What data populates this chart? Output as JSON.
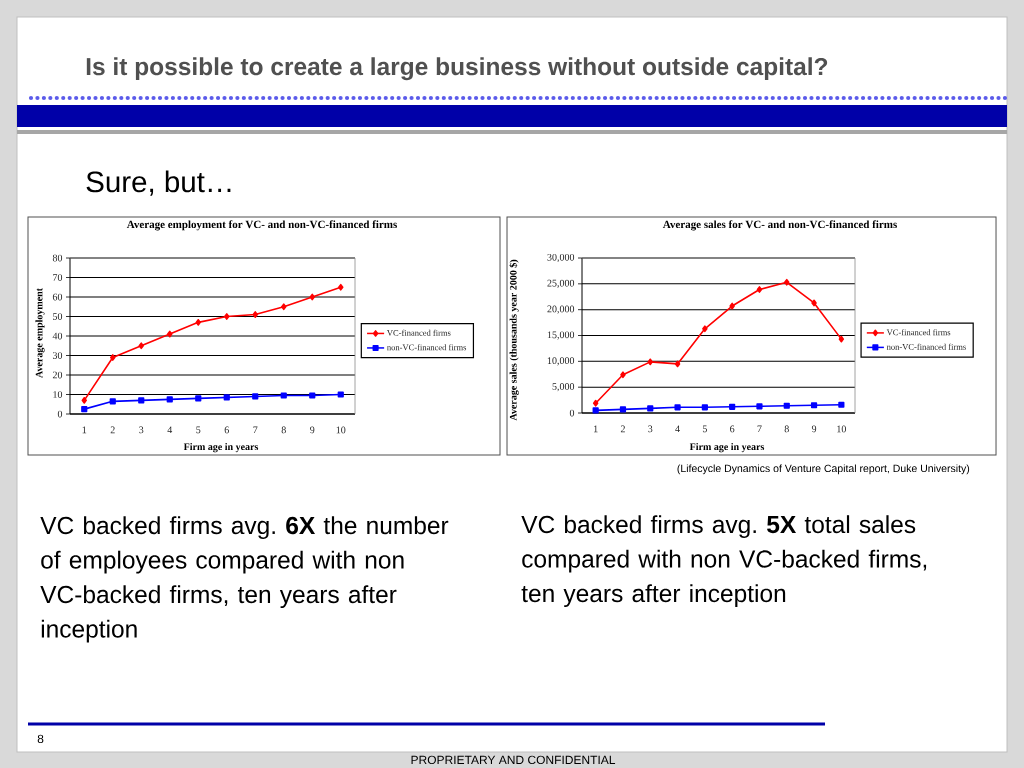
{
  "chart_data": [
    {
      "type": "other",
      "title": "Is it possible to create a large business without outside capital?",
      "subtitle": "Sure, but…"
    },
    {
      "type": "line",
      "title": "Average employment for VC- and non-VC-financed firms",
      "xlabel": "Firm age in years",
      "ylabel": "Average employment",
      "categories": [
        "1",
        "2",
        "3",
        "4",
        "5",
        "6",
        "7",
        "8",
        "9",
        "10"
      ],
      "series": [
        {
          "name": "VC-financed firms",
          "color": "#ff0000",
          "marker": "diamond",
          "values": [
            7,
            29,
            35,
            41,
            47,
            50,
            51,
            55,
            60,
            65
          ]
        },
        {
          "name": "non-VC-financed firms",
          "color": "#0000ff",
          "marker": "square",
          "values": [
            2.5,
            6.5,
            7,
            7.5,
            8,
            8.5,
            9,
            9.5,
            9.5,
            10
          ]
        }
      ],
      "ylim": [
        0,
        80
      ],
      "yticks": [
        0,
        10,
        20,
        30,
        40,
        50,
        60,
        70,
        80
      ],
      "grid": "y",
      "legend": "right",
      "annotations": [
        "VC backed firms avg. **6X** the number of employees compared with non VC-backed firms, ten years after inception"
      ]
    },
    {
      "type": "line",
      "title": "Average sales for VC- and non-VC-financed firms",
      "xlabel": "Firm age in years",
      "ylabel": "Average sales (thousands year 2000 $)",
      "categories": [
        "1",
        "2",
        "3",
        "4",
        "5",
        "6",
        "7",
        "8",
        "9",
        "10"
      ],
      "series": [
        {
          "name": "VC-financed firms",
          "color": "#ff0000",
          "marker": "diamond",
          "values": [
            1900,
            7400,
            9900,
            9500,
            16300,
            20700,
            23900,
            25300,
            21300,
            14300
          ]
        },
        {
          "name": "non-VC-financed firms",
          "color": "#0000ff",
          "marker": "square",
          "values": [
            500,
            700,
            900,
            1100,
            1100,
            1200,
            1300,
            1400,
            1500,
            1600
          ]
        }
      ],
      "ylim": [
        0,
        30000
      ],
      "yticks": [
        0,
        {
          "value": 5000,
          "label": "5,000"
        },
        {
          "value": 10000,
          "label": "10,000"
        },
        {
          "value": 15000,
          "label": "15,000"
        },
        {
          "value": 20000,
          "label": "20,000"
        },
        {
          "value": 25000,
          "label": "25,000"
        },
        {
          "value": 30000,
          "label": "30,000"
        }
      ],
      "grid": "y",
      "legend": "right",
      "annotations": [
        "(Lifecycle Dynamics of Venture Capital report, Duke University)",
        "VC backed firms avg. **5X** total sales compared with non VC-backed firms, ten years after inception"
      ]
    },
    {
      "type": "other",
      "annotations": [
        "8",
        "PROPRIETARY AND CONFIDENTIAL"
      ]
    }
  ]
}
